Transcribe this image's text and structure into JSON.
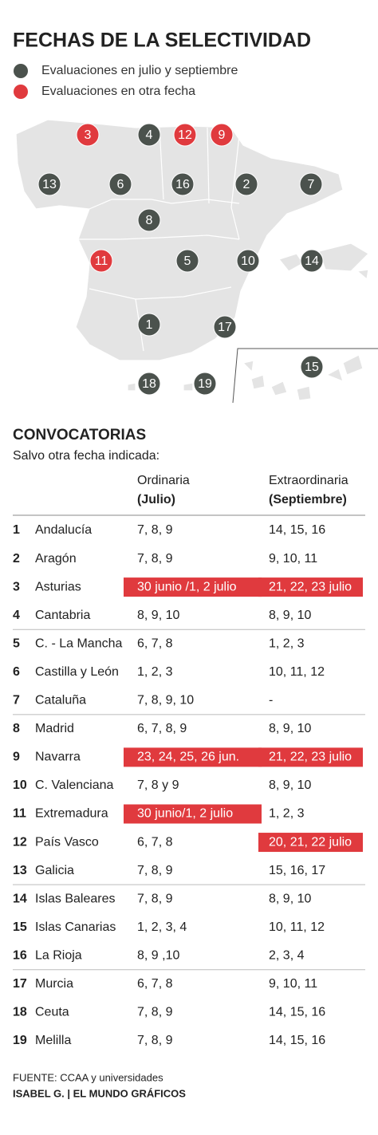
{
  "header": {
    "title": "FECHAS DE LA SELECTIVIDAD"
  },
  "legend": [
    {
      "label": "Evaluaciones en julio y septiembre",
      "color": "#4b524d"
    },
    {
      "label": "Evaluaciones en otra fecha",
      "color": "#e03a3e"
    }
  ],
  "map": {
    "markers": [
      {
        "label": "3",
        "color": "#e03a3e"
      },
      {
        "label": "4",
        "color": "#4b524d"
      },
      {
        "label": "12",
        "color": "#e03a3e"
      },
      {
        "label": "9",
        "color": "#e03a3e"
      },
      {
        "label": "13",
        "color": "#4b524d"
      },
      {
        "label": "6",
        "color": "#4b524d"
      },
      {
        "label": "16",
        "color": "#4b524d"
      },
      {
        "label": "2",
        "color": "#4b524d"
      },
      {
        "label": "7",
        "color": "#4b524d"
      },
      {
        "label": "8",
        "color": "#4b524d"
      },
      {
        "label": "11",
        "color": "#e03a3e"
      },
      {
        "label": "5",
        "color": "#4b524d"
      },
      {
        "label": "10",
        "color": "#4b524d"
      },
      {
        "label": "14",
        "color": "#4b524d"
      },
      {
        "label": "1",
        "color": "#4b524d"
      },
      {
        "label": "17",
        "color": "#4b524d"
      },
      {
        "label": "15",
        "color": "#4b524d"
      },
      {
        "label": "18",
        "color": "#4b524d"
      },
      {
        "label": "19",
        "color": "#4b524d"
      }
    ]
  },
  "table": {
    "title": "CONVOCATORIAS",
    "subtitle": "Salvo otra fecha indicada:",
    "columns": [
      {
        "label": "Ordinaria",
        "sublabel": "(Julio)"
      },
      {
        "label": "Extraordinaria",
        "sublabel": "(Septiembre)"
      }
    ],
    "highlight_color": "#e03a3e",
    "rows": [
      {
        "num": "1",
        "name": "Andalucía",
        "ordinaria": "7, 8, 9",
        "extraordinaria": "14, 15, 16",
        "highlight": []
      },
      {
        "num": "2",
        "name": "Aragón",
        "ordinaria": "7, 8, 9",
        "extraordinaria": "9, 10, 11",
        "highlight": []
      },
      {
        "num": "3",
        "name": "Asturias",
        "ordinaria": "30 junio /1, 2 julio",
        "extraordinaria": "21, 22, 23 julio",
        "highlight": [
          "ordinaria",
          "extraordinaria"
        ]
      },
      {
        "num": "4",
        "name": "Cantabria",
        "ordinaria": "8, 9, 10",
        "extraordinaria": "8, 9, 10",
        "highlight": []
      },
      {
        "num": "5",
        "name": "C. - La Mancha",
        "ordinaria": "6, 7, 8",
        "extraordinaria": "1, 2, 3",
        "highlight": []
      },
      {
        "num": "6",
        "name": "Castilla y León",
        "ordinaria": "1, 2, 3",
        "extraordinaria": "10, 11, 12",
        "highlight": []
      },
      {
        "num": "7",
        "name": "Cataluña",
        "ordinaria": "7, 8, 9, 10",
        "extraordinaria": "-",
        "highlight": []
      },
      {
        "num": "8",
        "name": "Madrid",
        "ordinaria": "6, 7, 8, 9",
        "extraordinaria": "8, 9, 10",
        "highlight": []
      },
      {
        "num": "9",
        "name": "Navarra",
        "ordinaria": "23, 24, 25, 26 jun.",
        "extraordinaria": "21, 22, 23 julio",
        "highlight": [
          "ordinaria",
          "extraordinaria"
        ]
      },
      {
        "num": "10",
        "name": "C. Valenciana",
        "ordinaria": "7, 8 y 9",
        "extraordinaria": "8, 9, 10",
        "highlight": []
      },
      {
        "num": "11",
        "name": "Extremadura",
        "ordinaria": "30 junio/1, 2 julio",
        "extraordinaria": "1, 2, 3",
        "highlight": [
          "ordinaria"
        ]
      },
      {
        "num": "12",
        "name": "País Vasco",
        "ordinaria": "6, 7, 8",
        "extraordinaria": "20, 21, 22 julio",
        "highlight": [
          "extraordinaria"
        ]
      },
      {
        "num": "13",
        "name": "Galicia",
        "ordinaria": "7, 8, 9",
        "extraordinaria": "15, 16, 17",
        "highlight": []
      },
      {
        "num": "14",
        "name": "Islas Baleares",
        "ordinaria": "7, 8, 9",
        "extraordinaria": "8, 9, 10",
        "highlight": []
      },
      {
        "num": "15",
        "name": "Islas Canarias",
        "ordinaria": "1, 2, 3, 4",
        "extraordinaria": "10, 11, 12",
        "highlight": []
      },
      {
        "num": "16",
        "name": "La Rioja",
        "ordinaria": "8, 9 ,10",
        "extraordinaria": "2, 3, 4",
        "highlight": []
      },
      {
        "num": "17",
        "name": "Murcia",
        "ordinaria": "6, 7, 8",
        "extraordinaria": "9, 10, 11",
        "highlight": []
      },
      {
        "num": "18",
        "name": "Ceuta",
        "ordinaria": "7, 8, 9",
        "extraordinaria": "14, 15, 16",
        "highlight": []
      },
      {
        "num": "19",
        "name": "Melilla",
        "ordinaria": "7, 8, 9",
        "extraordinaria": "14, 15, 16",
        "highlight": []
      }
    ]
  },
  "footer": {
    "source": "FUENTE: CCAA y universidades",
    "credit": "ISABEL G. | EL MUNDO GRÁFICOS"
  }
}
